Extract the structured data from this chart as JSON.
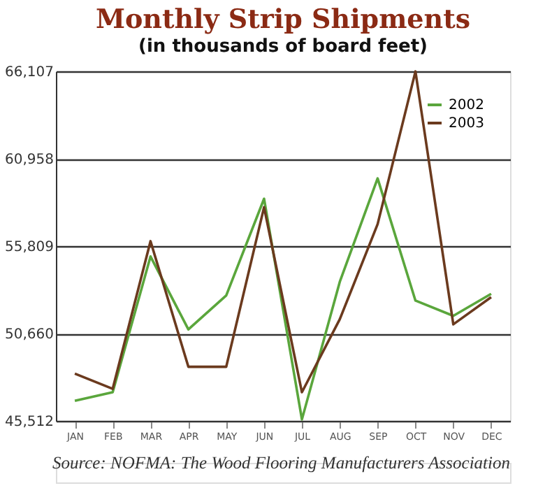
{
  "chart_data": {
    "type": "line",
    "title": "Monthly Strip Shipments",
    "subtitle": "(in thousands of board feet)",
    "categories": [
      "JAN",
      "FEB",
      "MAR",
      "APR",
      "MAY",
      "JUN",
      "JUL",
      "AUG",
      "SEP",
      "OCT",
      "NOV",
      "DEC"
    ],
    "series": [
      {
        "name": "2002",
        "color": "#5aa63c",
        "values": [
          46700,
          47200,
          55200,
          50900,
          52900,
          58600,
          45600,
          53700,
          59800,
          52600,
          51700,
          53000
        ]
      },
      {
        "name": "2003",
        "color": "#6b3a1e",
        "values": [
          48300,
          47400,
          56100,
          48700,
          48700,
          58100,
          47200,
          51500,
          57100,
          66100,
          51200,
          52800
        ]
      }
    ],
    "ylim": [
      45512,
      66107
    ],
    "yticks": [
      {
        "value": 45512,
        "label": "45,512"
      },
      {
        "value": 50660,
        "label": "50,660"
      },
      {
        "value": 55809,
        "label": "55,809"
      },
      {
        "value": 60958,
        "label": "60,958"
      },
      {
        "value": 66107,
        "label": "66,107"
      }
    ],
    "grid": "y",
    "legend": "top right",
    "marker": "none",
    "line_style": "solid",
    "annotations": [
      "Source: NOFMA: The Wood Flooring Manufacturers Association"
    ]
  }
}
